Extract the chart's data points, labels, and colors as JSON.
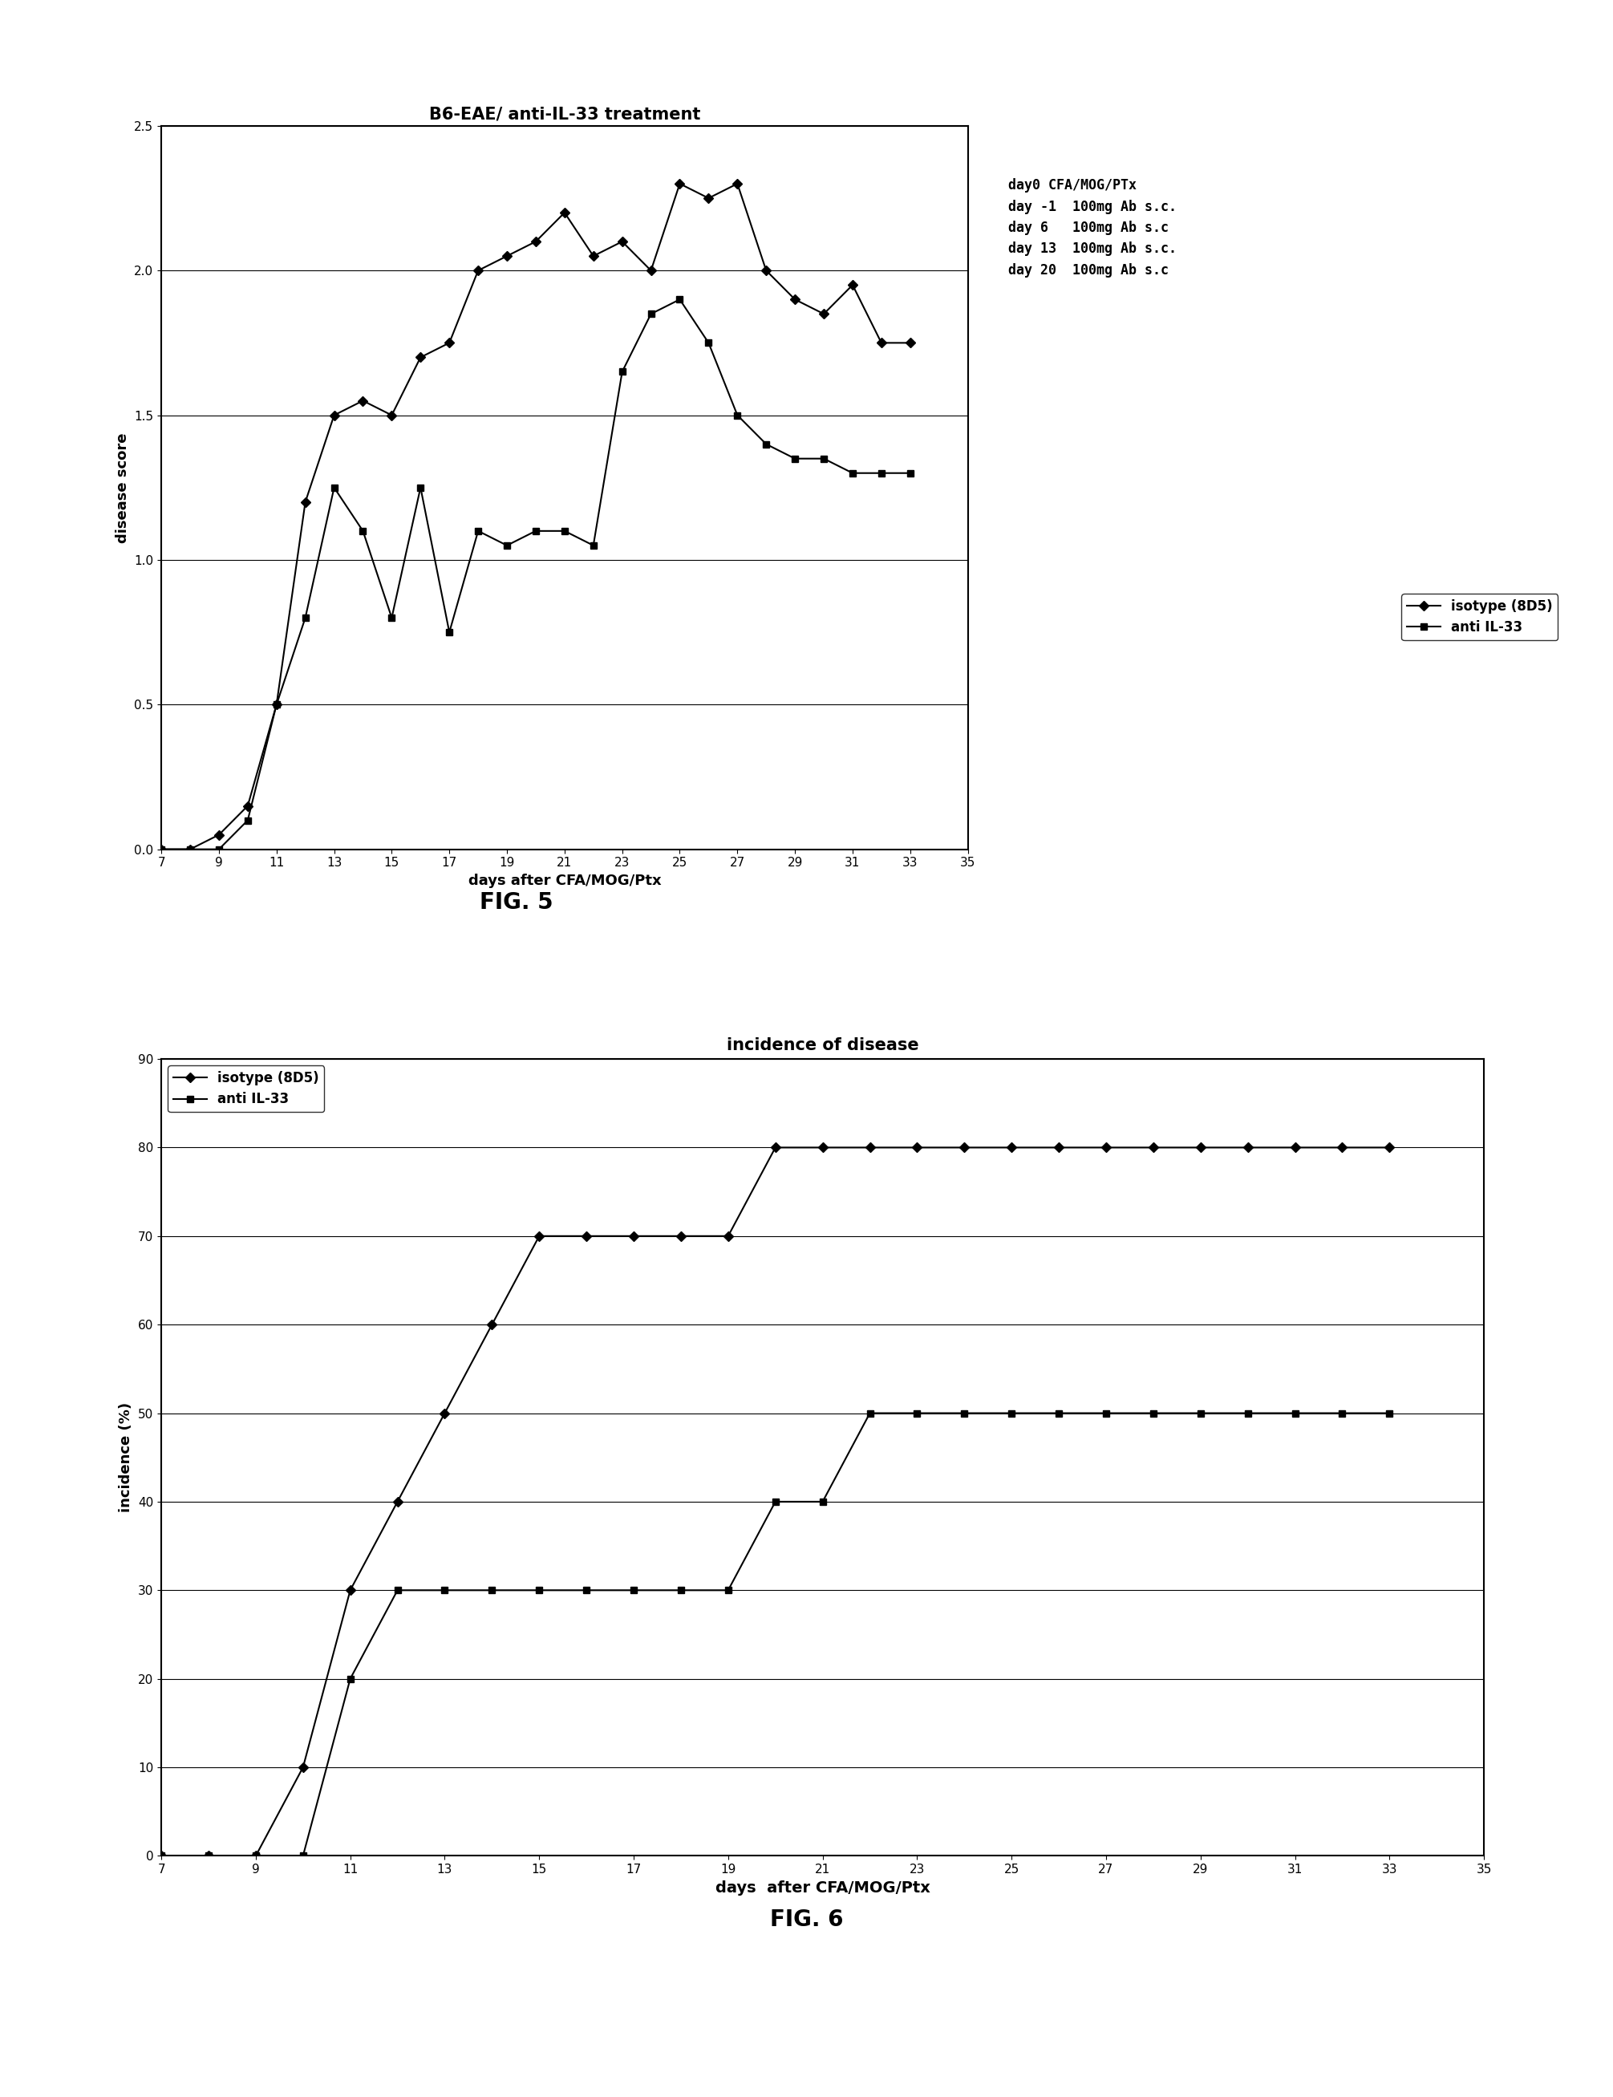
{
  "fig5": {
    "title": "B6-EAE/ anti-IL-33 treatment",
    "xlabel": "days after CFA/MOG/Ptx",
    "ylabel": "disease score",
    "annotation": "day0 CFA/MOG/PTx\nday -1  100mg Ab s.c.\nday 6   100mg Ab s.c\nday 13  100mg Ab s.c.\nday 20  100mg Ab s.c",
    "xlim": [
      7,
      35
    ],
    "ylim": [
      0,
      2.5
    ],
    "yticks": [
      0,
      0.5,
      1,
      1.5,
      2,
      2.5
    ],
    "xticks": [
      7,
      9,
      11,
      13,
      15,
      17,
      19,
      21,
      23,
      25,
      27,
      29,
      31,
      33,
      35
    ],
    "isotype_x": [
      7,
      8,
      9,
      10,
      11,
      12,
      13,
      14,
      15,
      16,
      17,
      18,
      19,
      20,
      21,
      22,
      23,
      24,
      25,
      26,
      27,
      28,
      29,
      30,
      31,
      32,
      33
    ],
    "isotype_y": [
      0,
      0,
      0.05,
      0.15,
      0.5,
      1.2,
      1.5,
      1.55,
      1.5,
      1.7,
      1.75,
      2.0,
      2.05,
      2.1,
      2.2,
      2.05,
      2.1,
      2.0,
      2.3,
      2.25,
      2.3,
      2.0,
      1.9,
      1.85,
      1.95,
      1.75,
      1.75
    ],
    "anti_x": [
      7,
      8,
      9,
      10,
      11,
      12,
      13,
      14,
      15,
      16,
      17,
      18,
      19,
      20,
      21,
      22,
      23,
      24,
      25,
      26,
      27,
      28,
      29,
      30,
      31,
      32,
      33
    ],
    "anti_y": [
      0,
      0,
      0,
      0.1,
      0.5,
      0.8,
      1.25,
      1.1,
      0.8,
      1.25,
      0.75,
      1.1,
      1.05,
      1.1,
      1.1,
      1.05,
      1.65,
      1.85,
      1.9,
      1.75,
      1.5,
      1.4,
      1.35,
      1.35,
      1.3,
      1.3,
      1.3
    ],
    "legend_isotype": "isotype (8D5)",
    "legend_anti": "anti IL-33"
  },
  "fig6": {
    "title": "incidence of disease",
    "xlabel": "days  after CFA/MOG/Ptx",
    "ylabel": "incidence (%)",
    "xlim": [
      7,
      35
    ],
    "ylim": [
      0,
      90
    ],
    "yticks": [
      0,
      10,
      20,
      30,
      40,
      50,
      60,
      70,
      80,
      90
    ],
    "xticks": [
      7,
      9,
      11,
      13,
      15,
      17,
      19,
      21,
      23,
      25,
      27,
      29,
      31,
      33,
      35
    ],
    "isotype_x": [
      7,
      8,
      9,
      10,
      11,
      12,
      13,
      14,
      15,
      16,
      17,
      18,
      19,
      20,
      21,
      22,
      23,
      24,
      25,
      26,
      27,
      28,
      29,
      30,
      31,
      32,
      33
    ],
    "isotype_y": [
      0,
      0,
      0,
      10,
      30,
      40,
      50,
      60,
      70,
      70,
      70,
      70,
      70,
      80,
      80,
      80,
      80,
      80,
      80,
      80,
      80,
      80,
      80,
      80,
      80,
      80,
      80
    ],
    "anti_x": [
      7,
      8,
      9,
      10,
      11,
      12,
      13,
      14,
      15,
      16,
      17,
      18,
      19,
      20,
      21,
      22,
      23,
      24,
      25,
      26,
      27,
      28,
      29,
      30,
      31,
      32,
      33
    ],
    "anti_y": [
      0,
      0,
      0,
      0,
      20,
      30,
      30,
      30,
      30,
      30,
      30,
      30,
      30,
      40,
      40,
      50,
      50,
      50,
      50,
      50,
      50,
      50,
      50,
      50,
      50,
      50,
      50
    ],
    "legend_isotype": "isotype (8D5)",
    "legend_anti": "anti IL-33"
  },
  "fig5_label": "FIG. 5",
  "fig6_label": "FIG. 6",
  "bg_color": "#ffffff"
}
